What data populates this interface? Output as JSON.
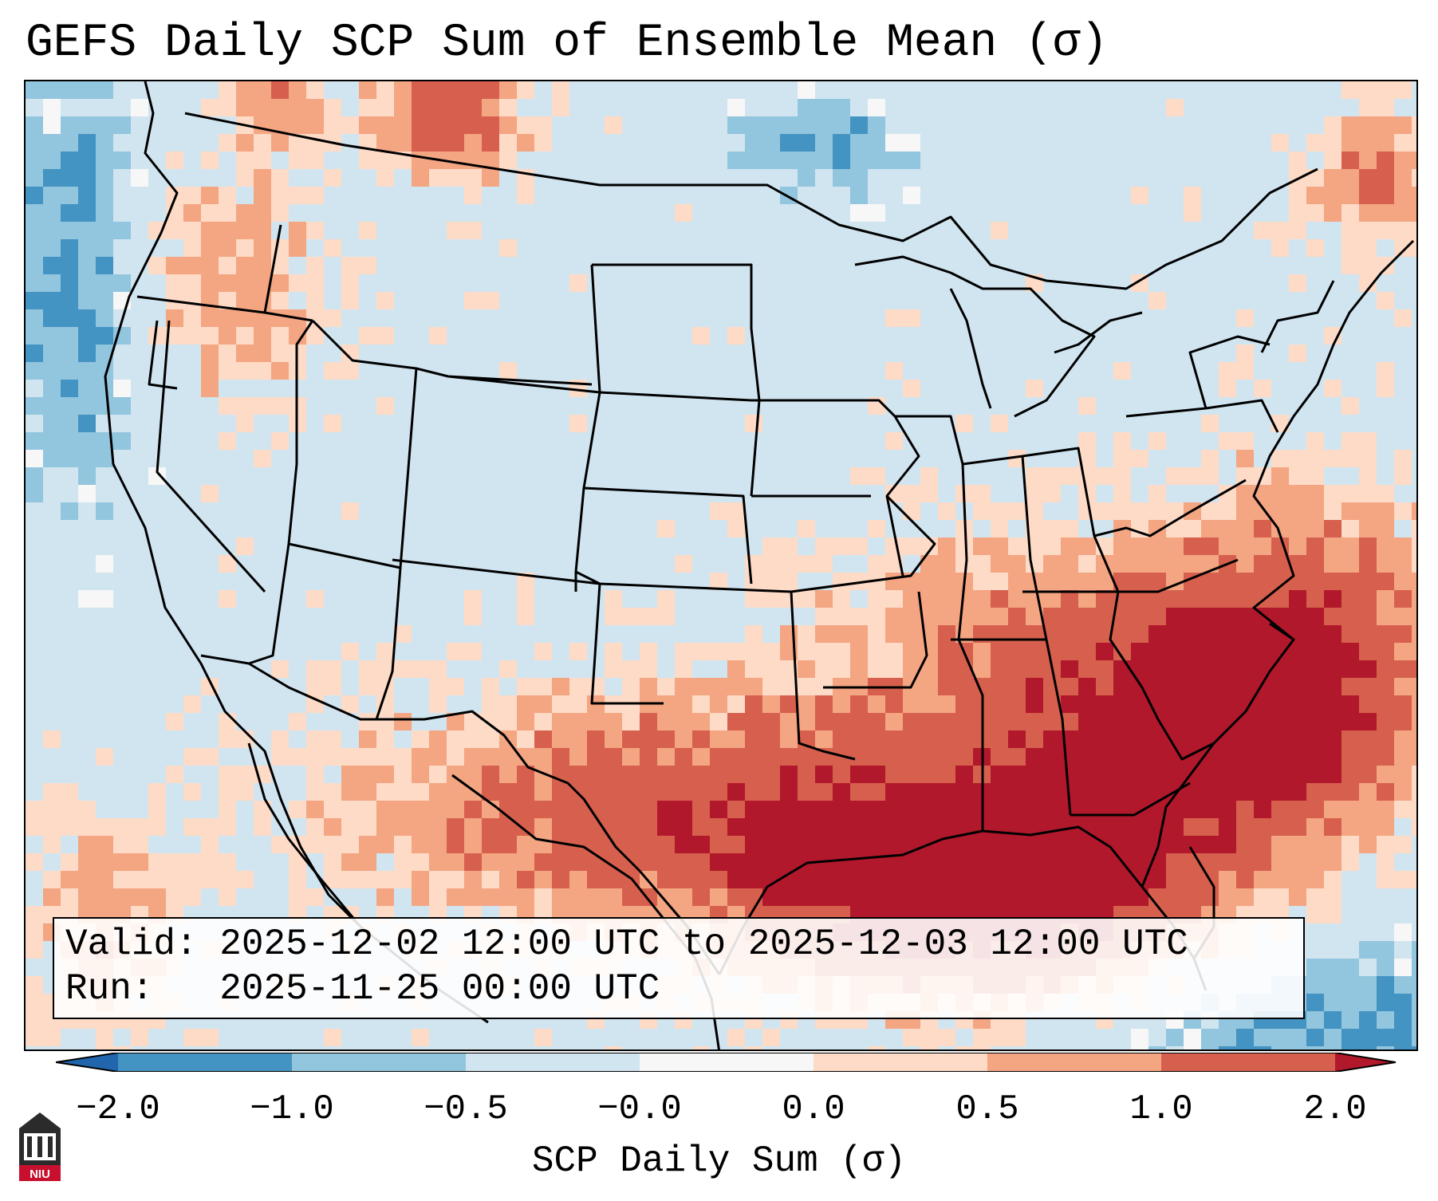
{
  "title": "GEFS Daily SCP Sum of Ensemble Mean (σ)",
  "info": {
    "valid_label": "Valid:",
    "valid_value": "2025-12-02 12:00 UTC to 2025-12-03 12:00 UTC",
    "run_label": "Run:",
    "run_value": "2025-11-25 00:00 UTC"
  },
  "colorbar": {
    "label": "SCP Daily Sum (σ)",
    "ticks": [
      "−2.0",
      "−1.0",
      "−0.5",
      "−0.0",
      "0.0",
      "0.5",
      "1.0",
      "2.0"
    ],
    "colors": {
      "below_min": "#2166ac",
      "b1": "#4393c3",
      "b2": "#92c5de",
      "b3": "#d1e5f0",
      "b4": "#f7f7f7",
      "b5": "#fddbc7",
      "b6": "#f4a582",
      "b7": "#d6604d",
      "above_max": "#b2182b"
    }
  },
  "logo": {
    "text": "NIU",
    "color": "#c8102e"
  }
}
